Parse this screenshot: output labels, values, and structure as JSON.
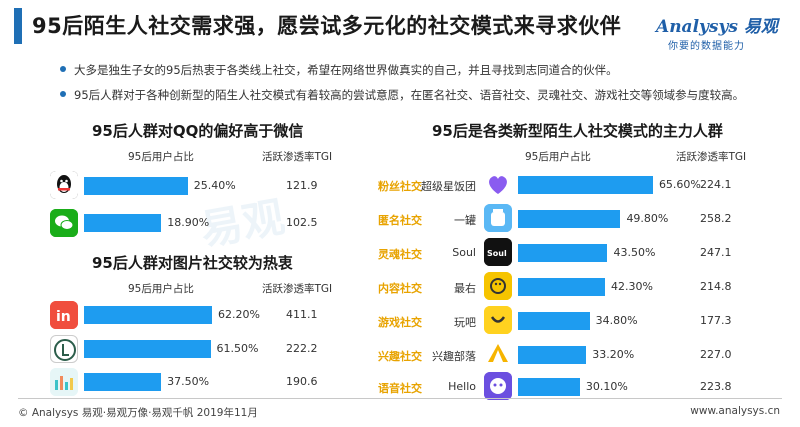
{
  "header": {
    "title": "95后陌生人社交需求强，愿尝试多元化的社交模式来寻求伙伴",
    "logo_main": "Analysys 易观",
    "logo_sub": "你要的数据能力"
  },
  "bullets": [
    "大多是独生子女的95后热衷于各类线上社交，希望在网络世界做真实的自己，并且寻找到志同道合的伙伴。",
    "95后人群对于各种创新型的陌生人社交模式有着较高的尝试意愿，在匿名社交、语音社交、灵魂社交、游戏社交等领域参与度较高。"
  ],
  "watermark": "易观",
  "colors": {
    "bar": "#1e9cf0",
    "accent": "#1f6fb5",
    "category": "#e8a300"
  },
  "chart_data": [
    {
      "type": "bar",
      "title": "95后人群对QQ的偏好高于微信",
      "value_header": "95后用户占比",
      "tgi_header": "活跃渗透率TGI",
      "categories": [
        "qq-icon",
        "wechat-icon"
      ],
      "values": [
        25.4,
        18.9
      ],
      "value_labels": [
        "25.40%",
        "18.90%"
      ],
      "tgi": [
        "121.9",
        "102.5"
      ],
      "xlim": [
        0,
        70
      ]
    },
    {
      "type": "bar",
      "title": "95后人群对图片社交较为热衷",
      "value_header": "95后用户占比",
      "tgi_header": "活跃渗透率TGI",
      "categories": [
        "in-app-icon",
        "lofter-icon",
        "photo-app-icon"
      ],
      "values": [
        62.2,
        61.5,
        37.5
      ],
      "value_labels": [
        "62.20%",
        "61.50%",
        "37.50%"
      ],
      "tgi": [
        "411.1",
        "222.2",
        "190.6"
      ],
      "xlim": [
        0,
        70
      ]
    },
    {
      "type": "bar",
      "title": "95后是各类新型陌生人社交模式的主力人群",
      "value_header": "95后用户占比",
      "tgi_header": "活跃渗透率TGI",
      "categories": [
        "粉丝社交",
        "匿名社交",
        "灵魂社交",
        "内容社交",
        "游戏社交",
        "兴趣社交",
        "语音社交"
      ],
      "apps": [
        "超级星饭团",
        "一罐",
        "Soul",
        "最右",
        "玩吧",
        "兴趣部落",
        "Hello"
      ],
      "values": [
        65.6,
        49.8,
        43.5,
        42.3,
        34.8,
        33.2,
        30.1
      ],
      "value_labels": [
        "65.60%",
        "49.80%",
        "43.50%",
        "42.30%",
        "34.80%",
        "33.20%",
        "30.10%"
      ],
      "tgi": [
        "224.1",
        "258.2",
        "247.1",
        "214.8",
        "177.3",
        "227.0",
        "223.8"
      ],
      "xlim": [
        0,
        70
      ]
    }
  ],
  "footer": {
    "copyright": "© Analysys 易观·易观万像·易观千帆 2019年11月",
    "website": "www.analysys.cn"
  }
}
